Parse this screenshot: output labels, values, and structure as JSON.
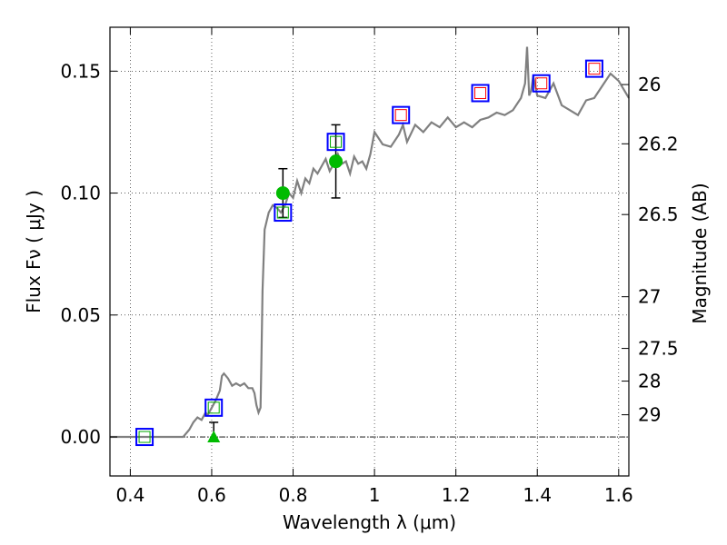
{
  "chart_data": {
    "type": "line",
    "xlabel": "Wavelength  λ (μm)",
    "ylabel": "Flux  Fν  ( μJy )",
    "y2label": "Magnitude (AB)",
    "xlim": [
      0.35,
      1.625
    ],
    "ylim": [
      -0.016,
      0.168
    ],
    "grid": true,
    "xticks": [
      {
        "value": 0.4,
        "label": "0.4"
      },
      {
        "value": 0.6,
        "label": "0.6"
      },
      {
        "value": 0.8,
        "label": "0.8"
      },
      {
        "value": 1.0,
        "label": "1"
      },
      {
        "value": 1.2,
        "label": "1.2"
      },
      {
        "value": 1.4,
        "label": "1.4"
      },
      {
        "value": 1.6,
        "label": "1.6"
      }
    ],
    "yticks": [
      {
        "value": 0.0,
        "label": "0.00"
      },
      {
        "value": 0.05,
        "label": "0.05"
      },
      {
        "value": 0.1,
        "label": "0.10"
      },
      {
        "value": 0.15,
        "label": "0.15"
      }
    ],
    "magnitude_ticks": [
      {
        "flux": 0.1445,
        "label": "26"
      },
      {
        "flux": 0.1202,
        "label": "26.2"
      },
      {
        "flux": 0.0912,
        "label": "26.5"
      },
      {
        "flux": 0.0575,
        "label": "27"
      },
      {
        "flux": 0.0363,
        "label": "27.5"
      },
      {
        "flux": 0.0229,
        "label": "28"
      },
      {
        "flux": 0.0091,
        "label": "29"
      }
    ],
    "zero_line": 0.0,
    "spectrum": {
      "color": "#808080",
      "x": [
        0.35,
        0.44,
        0.53,
        0.545,
        0.555,
        0.565,
        0.575,
        0.585,
        0.59,
        0.6,
        0.61,
        0.62,
        0.625,
        0.63,
        0.64,
        0.65,
        0.66,
        0.67,
        0.68,
        0.69,
        0.7,
        0.705,
        0.71,
        0.715,
        0.72,
        0.722,
        0.725,
        0.73,
        0.74,
        0.75,
        0.76,
        0.77,
        0.78,
        0.79,
        0.8,
        0.81,
        0.82,
        0.83,
        0.84,
        0.85,
        0.86,
        0.87,
        0.88,
        0.89,
        0.9,
        0.91,
        0.92,
        0.93,
        0.94,
        0.95,
        0.96,
        0.97,
        0.98,
        0.99,
        1.0,
        1.02,
        1.04,
        1.06,
        1.07,
        1.08,
        1.1,
        1.12,
        1.14,
        1.16,
        1.18,
        1.2,
        1.22,
        1.24,
        1.26,
        1.28,
        1.3,
        1.32,
        1.34,
        1.36,
        1.37,
        1.375,
        1.38,
        1.385,
        1.39,
        1.4,
        1.42,
        1.44,
        1.46,
        1.48,
        1.5,
        1.52,
        1.54,
        1.56,
        1.58,
        1.6,
        1.625
      ],
      "y": [
        0.0,
        0.0,
        0.0,
        0.003,
        0.006,
        0.008,
        0.007,
        0.01,
        0.009,
        0.012,
        0.015,
        0.019,
        0.025,
        0.026,
        0.024,
        0.021,
        0.022,
        0.021,
        0.022,
        0.02,
        0.02,
        0.018,
        0.013,
        0.01,
        0.012,
        0.03,
        0.06,
        0.085,
        0.092,
        0.095,
        0.094,
        0.092,
        0.095,
        0.1,
        0.098,
        0.105,
        0.1,
        0.106,
        0.104,
        0.11,
        0.108,
        0.111,
        0.114,
        0.109,
        0.112,
        0.116,
        0.112,
        0.113,
        0.108,
        0.115,
        0.112,
        0.113,
        0.11,
        0.116,
        0.125,
        0.12,
        0.119,
        0.124,
        0.128,
        0.121,
        0.128,
        0.125,
        0.129,
        0.127,
        0.131,
        0.127,
        0.129,
        0.127,
        0.13,
        0.131,
        0.133,
        0.132,
        0.134,
        0.139,
        0.145,
        0.16,
        0.14,
        0.142,
        0.148,
        0.14,
        0.139,
        0.145,
        0.136,
        0.134,
        0.132,
        0.138,
        0.139,
        0.144,
        0.149,
        0.146,
        0.139
      ]
    },
    "model_squares": {
      "color": "#0000ff",
      "x": [
        0.435,
        0.605,
        0.775,
        0.905,
        1.065,
        1.26,
        1.41,
        1.54
      ],
      "y": [
        0.0,
        0.012,
        0.092,
        0.121,
        0.132,
        0.141,
        0.145,
        0.151
      ]
    },
    "inner_squares": {
      "colors": [
        "#00aa00",
        "#00aa00",
        "#00aa00",
        "#00aa00",
        "#ff0000",
        "#ff0000",
        "#ff0000",
        "#ff0000"
      ]
    },
    "observed_points": {
      "color": "#00bb00",
      "x": [
        0.775,
        0.905
      ],
      "y": [
        0.1,
        0.113
      ],
      "yerr_low": [
        0.09,
        0.098
      ],
      "yerr_high": [
        0.11,
        0.128
      ]
    },
    "upper_limit": {
      "color": "#00bb00",
      "x": 0.605,
      "y": 0.0,
      "err_low": 0.0,
      "err_high": 0.006
    }
  }
}
